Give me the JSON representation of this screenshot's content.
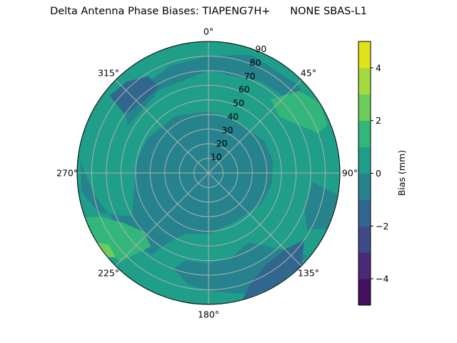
{
  "chart_data": {
    "type": "polar-contour",
    "title": "Delta Antenna Phase Biases: TIAPENG7H+      NONE SBAS-L1",
    "angular_axis": {
      "direction": "clockwise",
      "zero": "north",
      "tick_labels": [
        "0°",
        "45°",
        "90°",
        "135°",
        "180°",
        "225°",
        "270°",
        "315°"
      ],
      "ticks": [
        0,
        45,
        90,
        135,
        180,
        225,
        270,
        315
      ]
    },
    "radial_axis": {
      "range": [
        0,
        90
      ],
      "ticks": [
        10,
        20,
        30,
        40,
        50,
        60,
        70,
        80,
        90
      ],
      "tick_labels": [
        "10",
        "20",
        "30",
        "40",
        "50",
        "60",
        "70",
        "80",
        "90"
      ]
    },
    "grid": true,
    "colorbar": {
      "label": "Bias (mm)",
      "levels": [
        -5,
        -4,
        -3,
        -2,
        -1,
        0,
        1,
        2,
        3,
        4,
        5
      ],
      "colors": [
        "#45105f",
        "#482a79",
        "#3e4b89",
        "#31678e",
        "#26838e",
        "#1f9e89",
        "#33b67a",
        "#6ccd5a",
        "#a3da3f",
        "#dfe318"
      ],
      "ticks": [
        -4,
        -2,
        0,
        2,
        4
      ],
      "tick_labels": [
        "−4",
        "−2",
        "0",
        "2",
        "4"
      ]
    },
    "background_band": [
      0,
      1
    ],
    "regions": [
      {
        "band": [
          -1,
          0
        ],
        "points": [
          [
            300,
            64
          ],
          [
            330,
            66
          ],
          [
            0,
            70
          ],
          [
            30,
            72
          ],
          [
            55,
            78
          ],
          [
            60,
            84
          ],
          [
            45,
            86
          ],
          [
            20,
            86
          ],
          [
            0,
            80
          ],
          [
            340,
            78
          ],
          [
            310,
            76
          ]
        ]
      },
      {
        "band": [
          -1,
          0
        ],
        "points": [
          [
            280,
            50
          ],
          [
            300,
            48
          ],
          [
            330,
            45
          ],
          [
            0,
            42
          ],
          [
            30,
            40
          ],
          [
            60,
            44
          ],
          [
            80,
            45
          ],
          [
            100,
            44
          ],
          [
            120,
            42
          ],
          [
            150,
            38
          ],
          [
            180,
            42
          ],
          [
            200,
            44
          ],
          [
            210,
            55
          ],
          [
            215,
            68
          ],
          [
            230,
            72
          ],
          [
            260,
            80
          ],
          [
            275,
            88
          ],
          [
            262,
            88
          ],
          [
            250,
            80
          ],
          [
            240,
            60
          ],
          [
            250,
            55
          ]
        ]
      },
      {
        "band": [
          -1,
          0
        ],
        "points": [
          [
            0,
            8
          ],
          [
            45,
            15
          ],
          [
            80,
            24
          ],
          [
            110,
            28
          ],
          [
            140,
            26
          ],
          [
            170,
            30
          ],
          [
            200,
            28
          ],
          [
            230,
            20
          ],
          [
            260,
            14
          ],
          [
            300,
            10
          ],
          [
            340,
            8
          ]
        ]
      },
      {
        "band": [
          -1,
          0
        ],
        "points": [
          [
            150,
            55
          ],
          [
            165,
            60
          ],
          [
            180,
            62
          ],
          [
            195,
            62
          ],
          [
            200,
            70
          ],
          [
            190,
            78
          ],
          [
            175,
            82
          ],
          [
            160,
            88
          ],
          [
            145,
            90
          ],
          [
            130,
            88
          ],
          [
            135,
            75
          ]
        ]
      },
      {
        "band": [
          -1,
          0
        ],
        "points": [
          [
            95,
            72
          ],
          [
            110,
            70
          ],
          [
            120,
            78
          ],
          [
            115,
            90
          ],
          [
            100,
            90
          ]
        ]
      },
      {
        "band": [
          1,
          2
        ],
        "points": [
          [
            40,
            66
          ],
          [
            52,
            62
          ],
          [
            62,
            70
          ],
          [
            70,
            80
          ],
          [
            68,
            88
          ],
          [
            58,
            90
          ],
          [
            48,
            84
          ]
        ]
      },
      {
        "band": [
          1,
          2
        ],
        "points": [
          [
            218,
            64
          ],
          [
            228,
            60
          ],
          [
            240,
            68
          ],
          [
            248,
            80
          ],
          [
            250,
            90
          ],
          [
            238,
            90
          ],
          [
            225,
            86
          ]
        ]
      },
      {
        "band": [
          -2,
          -1
        ],
        "points": [
          [
            305,
            70
          ],
          [
            318,
            66
          ],
          [
            330,
            68
          ],
          [
            328,
            78
          ],
          [
            318,
            84
          ],
          [
            308,
            86
          ]
        ]
      },
      {
        "band": [
          -2,
          -1
        ],
        "points": [
          [
            125,
            80
          ],
          [
            135,
            74
          ],
          [
            148,
            74
          ],
          [
            160,
            82
          ],
          [
            165,
            90
          ],
          [
            150,
            90
          ],
          [
            135,
            90
          ]
        ]
      },
      {
        "band": [
          2,
          3
        ],
        "points": [
          [
            228,
            86
          ],
          [
            234,
            84
          ],
          [
            238,
            90
          ],
          [
            230,
            90
          ]
        ]
      }
    ]
  }
}
